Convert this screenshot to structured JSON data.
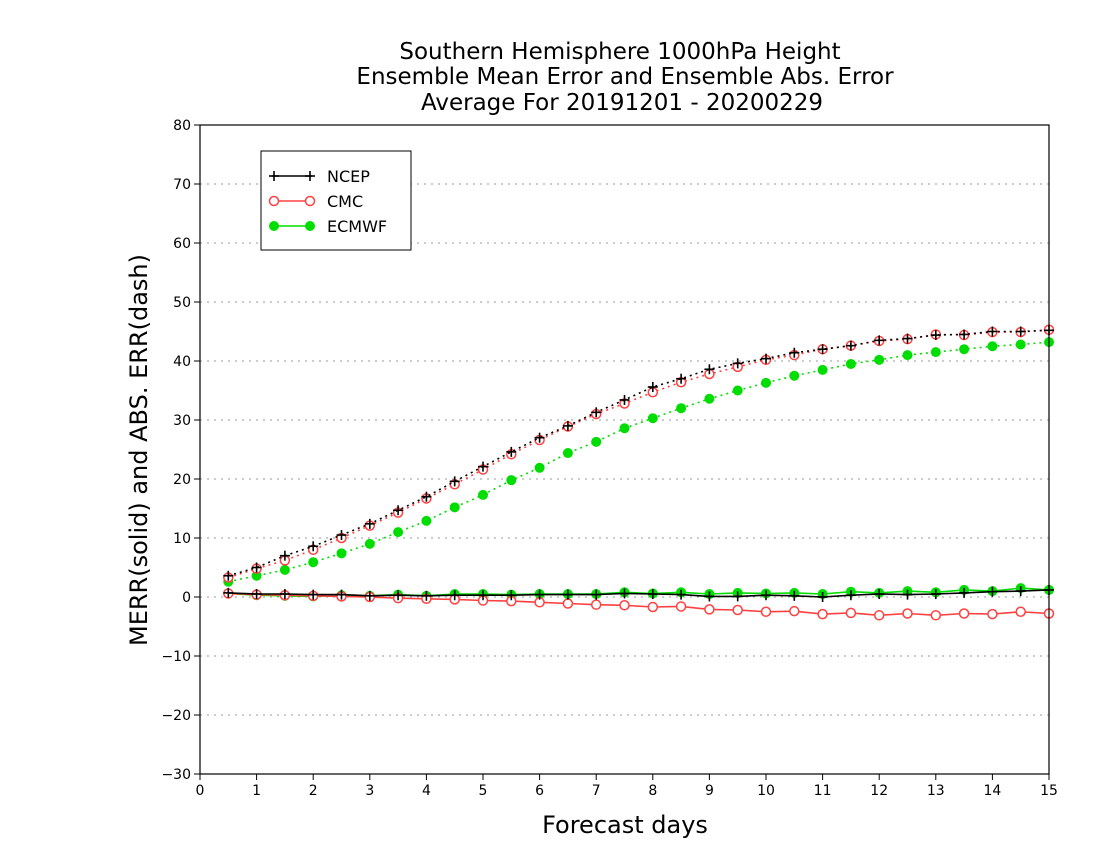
{
  "chart_data": {
    "type": "line",
    "title_lines": [
      "Southern Hemisphere 1000hPa Height",
      "Ensemble Mean Error and Ensemble Abs. Error",
      "Average For 20191201 - 20200229"
    ],
    "xlabel": "Forecast days",
    "ylabel": "MERR(solid) and ABS. ERR(dash)",
    "xlim": [
      0,
      15
    ],
    "ylim": [
      -30,
      80
    ],
    "xticks": [
      0,
      1,
      2,
      3,
      4,
      5,
      6,
      7,
      8,
      9,
      10,
      11,
      12,
      13,
      14,
      15
    ],
    "yticks": [
      -30,
      -20,
      -10,
      0,
      10,
      20,
      30,
      40,
      50,
      60,
      70,
      80
    ],
    "grid": "horizontal dotted",
    "legend_position": "top-left",
    "x": [
      0.5,
      1.0,
      1.5,
      2.0,
      2.5,
      3.0,
      3.5,
      4.0,
      4.5,
      5.0,
      5.5,
      6.0,
      6.5,
      7.0,
      7.5,
      8.0,
      8.5,
      9.0,
      9.5,
      10.0,
      10.5,
      11.0,
      11.5,
      12.0,
      12.5,
      13.0,
      13.5,
      14.0,
      14.5,
      15.0
    ],
    "series": [
      {
        "name": "NCEP",
        "color": "#000000",
        "marker": "plus",
        "merr": [
          0.7,
          0.5,
          0.5,
          0.4,
          0.4,
          0.2,
          0.3,
          0.2,
          0.3,
          0.3,
          0.3,
          0.4,
          0.4,
          0.4,
          0.6,
          0.5,
          0.4,
          0.1,
          0.1,
          0.3,
          0.2,
          0.0,
          0.3,
          0.5,
          0.4,
          0.5,
          0.7,
          0.9,
          1.0,
          1.2
        ],
        "abs_err": [
          3.6,
          5.0,
          7.0,
          8.6,
          10.5,
          12.4,
          14.7,
          17.0,
          19.6,
          22.1,
          24.6,
          27.0,
          29.0,
          31.3,
          33.4,
          35.6,
          37.0,
          38.6,
          39.6,
          40.4,
          41.4,
          42.0,
          42.6,
          43.5,
          43.8,
          44.4,
          44.5,
          45.0,
          45.0,
          45.2
        ]
      },
      {
        "name": "CMC",
        "color": "#ff4040",
        "marker": "open-circle",
        "merr": [
          0.6,
          0.4,
          0.3,
          0.2,
          0.1,
          0.0,
          -0.2,
          -0.3,
          -0.4,
          -0.6,
          -0.7,
          -0.9,
          -1.1,
          -1.3,
          -1.4,
          -1.7,
          -1.6,
          -2.1,
          -2.2,
          -2.5,
          -2.4,
          -2.9,
          -2.7,
          -3.1,
          -2.8,
          -3.1,
          -2.8,
          -2.9,
          -2.5,
          -2.8
        ],
        "abs_err": [
          3.3,
          4.8,
          6.2,
          8.0,
          10.0,
          12.1,
          14.3,
          16.7,
          19.1,
          21.6,
          24.2,
          26.6,
          28.9,
          31.0,
          32.8,
          34.7,
          36.4,
          37.8,
          39.0,
          40.2,
          41.0,
          42.0,
          42.6,
          43.4,
          43.7,
          44.5,
          44.4,
          44.9,
          44.9,
          45.3
        ]
      },
      {
        "name": "ECMWF",
        "color": "#00dd00",
        "marker": "filled-circle",
        "merr": [
          0.6,
          0.3,
          0.2,
          0.1,
          0.3,
          0.2,
          0.4,
          0.2,
          0.5,
          0.5,
          0.4,
          0.5,
          0.5,
          0.5,
          0.8,
          0.6,
          0.8,
          0.5,
          0.7,
          0.6,
          0.7,
          0.5,
          0.9,
          0.7,
          1.0,
          0.8,
          1.2,
          1.0,
          1.5,
          1.2
        ],
        "abs_err": [
          2.6,
          3.6,
          4.6,
          5.9,
          7.4,
          9.0,
          11.0,
          12.9,
          15.2,
          17.3,
          19.8,
          21.9,
          24.4,
          26.3,
          28.6,
          30.3,
          32.0,
          33.6,
          35.0,
          36.3,
          37.5,
          38.5,
          39.5,
          40.2,
          41.0,
          41.5,
          42.0,
          42.5,
          42.8,
          43.2
        ]
      }
    ]
  }
}
